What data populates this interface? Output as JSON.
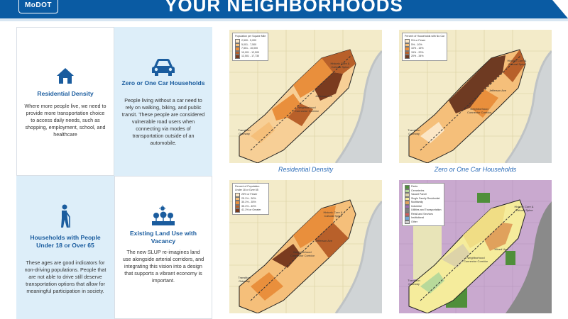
{
  "header": {
    "logo_text": "MoDOT",
    "title": "YOUR NEIGHBORHOODS"
  },
  "cards": [
    {
      "title": "Residential Density",
      "body": "Where more people live, we need to provide more transportation choice to access daily needs, such as shopping, employment, school, and healthcare",
      "icon": "house-icon"
    },
    {
      "title": "Zero or One Car Households",
      "body": "People living without a car need to rely on walking, biking, and public transit. These people are considered vulnerable road users when connecting via modes of transportation outside of an automobile.",
      "icon": "car-icon"
    },
    {
      "title": "Households with People Under 18 or Over 65",
      "body": "These ages are good indicators for non-driving populations. People that are not able to drive still deserve transportation options that allow for meaningful participation in society.",
      "icon": "elderly-person-icon"
    },
    {
      "title": "Existing Land Use with Vacancy",
      "body": "The new SLUP re-imagines land use alongside arterial corridors, and integrating this vision into a design that supports a vibrant economy is important.",
      "icon": "land-use-icon"
    }
  ],
  "maps": [
    {
      "caption": "Residential Density",
      "legend_title": "Population per Square Mile",
      "legend": [
        "2,500 - 5,000",
        "5,001 - 7,500",
        "7,501 - 10,000",
        "10,001 - 12,500",
        "12,501 - 17,730"
      ],
      "legend_colors": [
        "#fbe6c6",
        "#f5bf7a",
        "#e98f3c",
        "#b8602a",
        "#7a3b1f"
      ],
      "labels": [
        "Historic Core & Cultural Spine",
        "Jefferson Ave",
        "Neighborhood Connector Corridor",
        "Transition Gateway"
      ]
    },
    {
      "caption": "Zero or One Car Households",
      "legend_title": "Percent of Households with No Car",
      "legend": [
        "5% or Fewer",
        "5% - 10%",
        "10% - 15%",
        "15% - 20%",
        "20% - 34%"
      ],
      "legend_colors": [
        "#fbe6c6",
        "#f5bf7a",
        "#e98f3c",
        "#b8602a",
        "#6e3a22"
      ],
      "labels": [
        "Historic Core & Cultural Spine",
        "Jefferson Ave",
        "Neighborhood Connector Corridor",
        "Transition Gateway"
      ]
    },
    {
      "caption": "",
      "legend_title": "Percent of Population Under 18 or Over 65",
      "legend": [
        "25% or Fewer",
        "25.1% - 30%",
        "30.1% - 35%",
        "35.1% - 40%",
        "41.1% or Greater"
      ],
      "legend_colors": [
        "#fbe6c6",
        "#f5bf7a",
        "#e98f3c",
        "#b8602a",
        "#7a3b1f"
      ],
      "labels": [
        "Historic Core & Cultural Spine",
        "Jefferson Ave",
        "Neighborhood Connector Corridor",
        "Transition Gateway"
      ]
    },
    {
      "caption": "",
      "legend_title": "",
      "legend": [
        "Parks",
        "Cemeteries",
        "Vacant Parcel",
        "Single Family Residential",
        "Multifamily",
        "Industrial",
        "Utilities and Transportation",
        "Retail and Services",
        "Institutional",
        "Other"
      ],
      "legend_colors": [
        "#4f8f3a",
        "#b7d99a",
        "#ddd3a8",
        "#f5ec9c",
        "#e0a15c",
        "#9b6ab3",
        "#7e7e7e",
        "#d45a5a",
        "#6fa6d6",
        "#cfcfcf"
      ],
      "labels": [
        "Historic Core & Cultural Spine",
        "Mixed Use",
        "Neighborhood Connector Corridor",
        "Transition Gateway"
      ]
    }
  ]
}
